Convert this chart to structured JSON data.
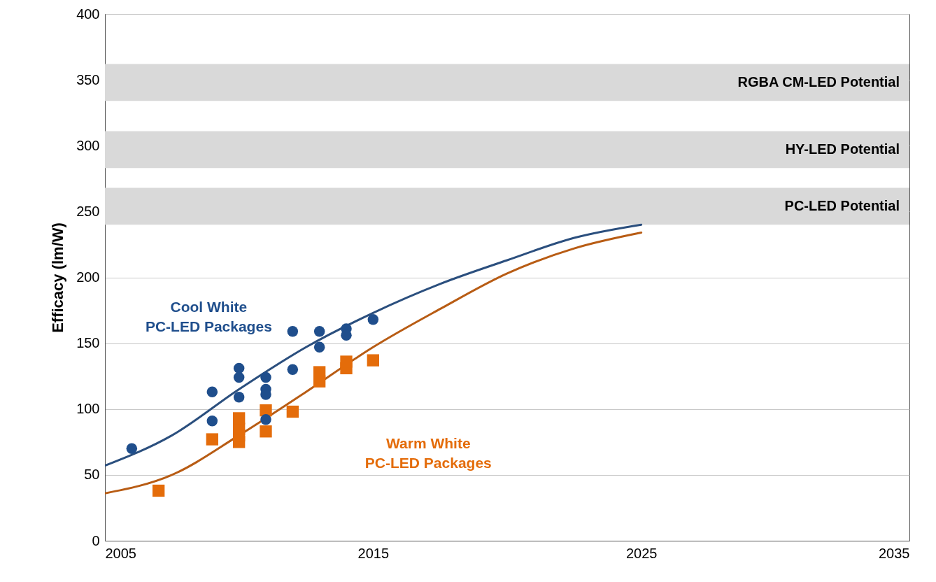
{
  "chart_data": {
    "type": "scatter",
    "ylabel": "Efficacy (lm/W)",
    "xlim": [
      2005,
      2035
    ],
    "xticks": [
      2005,
      2015,
      2025,
      2035
    ],
    "ylim": [
      0,
      400
    ],
    "yticks": [
      0,
      50,
      100,
      150,
      200,
      250,
      300,
      350,
      400
    ],
    "grid": "y",
    "series": [
      {
        "type": "scatter",
        "marker": "circle",
        "color": "#1f4e8c",
        "x": [
          2006,
          2009,
          2009,
          2010,
          2010,
          2010,
          2011,
          2011,
          2011,
          2011,
          2012,
          2012,
          2013,
          2013,
          2014,
          2014,
          2015
        ],
        "values": [
          70,
          113,
          91,
          131,
          124,
          109,
          124,
          115,
          111,
          92,
          159,
          130,
          159,
          147,
          161,
          156,
          168
        ]
      },
      {
        "type": "scatter",
        "marker": "square",
        "color": "#e46c0a",
        "x": [
          2007,
          2009,
          2010,
          2010,
          2010,
          2010,
          2011,
          2011,
          2012,
          2013,
          2013,
          2014,
          2014,
          2015
        ],
        "values": [
          38,
          77,
          75,
          80,
          85,
          93,
          83,
          99,
          98,
          121,
          128,
          131,
          136,
          137
        ]
      },
      {
        "type": "line",
        "color": "#2b4f7e",
        "x": [
          2005,
          2007.5,
          2010,
          2012.5,
          2015,
          2017.5,
          2020,
          2022.5,
          2025
        ],
        "values": [
          57,
          80,
          115,
          147,
          173,
          195,
          213,
          230,
          240
        ]
      },
      {
        "type": "line",
        "color": "#b85c14",
        "x": [
          2005,
          2007.5,
          2010,
          2012.5,
          2015,
          2017.5,
          2020,
          2022.5,
          2025
        ],
        "values": [
          36,
          50,
          80,
          113,
          147,
          176,
          203,
          222,
          234
        ]
      }
    ],
    "bands": [
      {
        "axis": "y",
        "from": 334,
        "to": 362,
        "label": "RGBA CM-LED Potential",
        "color": "#d9d9d9"
      },
      {
        "axis": "y",
        "from": 283,
        "to": 311,
        "label": "HY-LED Potential",
        "color": "#d9d9d9"
      },
      {
        "axis": "y",
        "from": 240,
        "to": 268,
        "label": "PC-LED Potential",
        "color": "#d9d9d9"
      }
    ],
    "annotations": [
      "Cool White\nPC-LED Packages",
      "Warm White\nPC-LED Packages"
    ]
  }
}
